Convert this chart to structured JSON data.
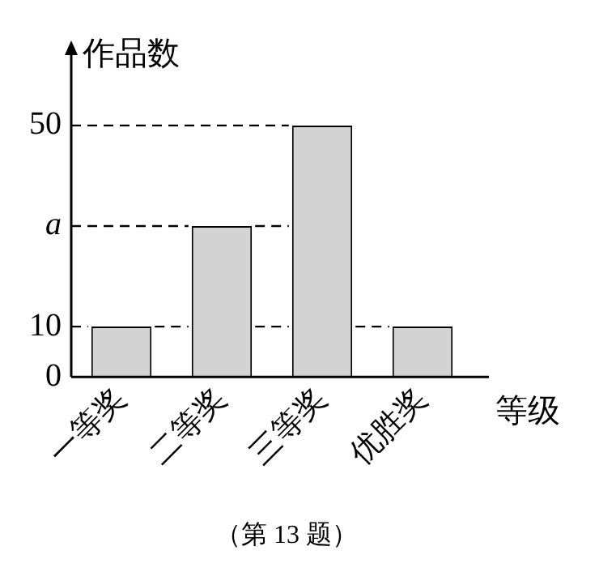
{
  "chart_data": {
    "type": "bar",
    "ylabel": "作品数",
    "xlabel": "等级",
    "categories": [
      "一等奖",
      "二等奖",
      "三等奖",
      "优胜奖"
    ],
    "values": [
      10,
      30,
      50,
      10
    ],
    "color": "#d3d3d3",
    "ylim": [
      0,
      64
    ],
    "yticks": [
      0,
      10,
      {
        "value": 30,
        "label": "a"
      },
      50
    ],
    "grid": false,
    "legend": false,
    "ref_lines": [
      {
        "axis": "y",
        "value": 10,
        "line_style": "dashed"
      },
      {
        "axis": "y",
        "value": 30,
        "line_style": "dashed"
      },
      {
        "axis": "y",
        "value": 50,
        "line_style": "dashed"
      }
    ],
    "annotations": [
      "（第 13 题）"
    ]
  }
}
